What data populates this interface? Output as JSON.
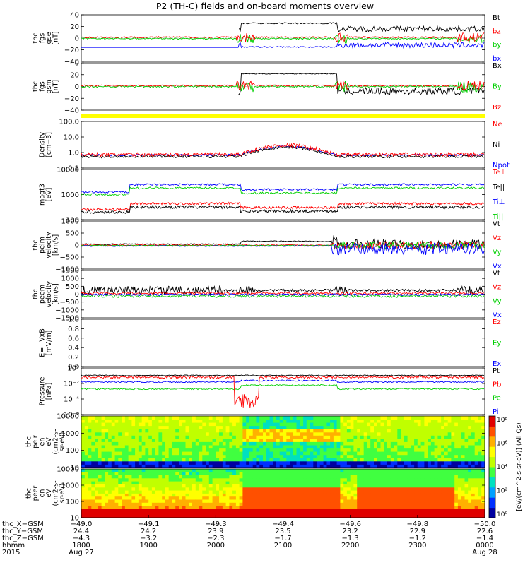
{
  "title": "P2 (TH-C) fields and on-board moments overview",
  "colors": {
    "black": "#000000",
    "red": "#ff0000",
    "green": "#00d000",
    "blue": "#0000ff",
    "yellow": "#ffff00"
  },
  "chart_data": [
    {
      "id": "fgs_gse",
      "type": "line",
      "ylabel": [
        "thc",
        "fgs",
        "gse",
        "[nT]"
      ],
      "yticks": [
        "40",
        "20",
        "0",
        "−20",
        "−40"
      ],
      "ylim": [
        -40,
        40
      ],
      "legend": [
        {
          "label": "Bt",
          "color": "black"
        },
        {
          "label": "bz",
          "color": "red"
        },
        {
          "label": "by",
          "color": "green"
        },
        {
          "label": "bx",
          "color": "blue"
        }
      ]
    },
    {
      "id": "fgs_gsm",
      "type": "line",
      "ylabel": [
        "thc",
        "fgs",
        "gsm",
        "[nT]"
      ],
      "yticks": [
        "40",
        "20",
        "0",
        "−20",
        "−40"
      ],
      "ylim": [
        -40,
        40
      ],
      "legend": [
        {
          "label": "Bx",
          "color": "black"
        },
        {
          "label": "By",
          "color": "green"
        },
        {
          "label": "Bz",
          "color": "red"
        }
      ]
    },
    {
      "id": "density",
      "type": "line",
      "ylabel": [
        "Density",
        "[cm−3]"
      ],
      "yticks": [
        "100.0",
        "10.0",
        "1.0",
        "0.1"
      ],
      "scale": "log",
      "legend": [
        {
          "label": "Ne",
          "color": "red"
        },
        {
          "label": "Ni",
          "color": "black"
        },
        {
          "label": "Npot",
          "color": "blue"
        }
      ]
    },
    {
      "id": "temperature",
      "type": "line",
      "ylabel": [
        "magt3",
        "[eV]"
      ],
      "yticks": [
        "10000",
        "1000",
        "100"
      ],
      "scale": "log",
      "legend": [
        {
          "label": "Te⊥",
          "color": "red"
        },
        {
          "label": "Te||",
          "color": "black"
        },
        {
          "label": "Ti⊥",
          "color": "blue"
        },
        {
          "label": "Ti||",
          "color": "green"
        }
      ]
    },
    {
      "id": "peim_velocity",
      "type": "line",
      "ylabel": [
        "thc",
        "peim",
        "velocity",
        "[km/s]"
      ],
      "yticks": [
        "1000",
        "500",
        "0",
        "−500",
        "−1000"
      ],
      "ylim": [
        -1000,
        1000
      ],
      "legend": [
        {
          "label": "Vt",
          "color": "black"
        },
        {
          "label": "Vz",
          "color": "red"
        },
        {
          "label": "Vy",
          "color": "green"
        },
        {
          "label": "Vx",
          "color": "blue"
        }
      ]
    },
    {
      "id": "peem_velocity",
      "type": "line",
      "ylabel": [
        "thc",
        "peem",
        "velocity",
        "[km/s]"
      ],
      "yticks": [
        "1500",
        "1000",
        "500",
        "0",
        "−500",
        "−1000",
        "−1500"
      ],
      "ylim": [
        -1500,
        1500
      ],
      "legend": [
        {
          "label": "Vt",
          "color": "black"
        },
        {
          "label": "Vz",
          "color": "red"
        },
        {
          "label": "Vy",
          "color": "green"
        },
        {
          "label": "Vx",
          "color": "blue"
        }
      ]
    },
    {
      "id": "efield",
      "type": "line",
      "ylabel": [
        "E=−VxB",
        "[mV/m]"
      ],
      "yticks": [
        "1.0",
        "0.8",
        "0.6",
        "0.4",
        "0.2",
        "0.0"
      ],
      "ylim": [
        0,
        1
      ],
      "legend": [
        {
          "label": "Ez",
          "color": "red"
        },
        {
          "label": "Ey",
          "color": "green"
        },
        {
          "label": "Ex",
          "color": "blue"
        }
      ]
    },
    {
      "id": "pressure",
      "type": "line",
      "ylabel": [
        "Pressure",
        "[nPa]"
      ],
      "yticks": [
        "10⁰",
        "10⁻²",
        "10⁻⁴",
        "10⁻⁶"
      ],
      "scale": "log",
      "legend": [
        {
          "label": "Pt",
          "color": "black"
        },
        {
          "label": "Pb",
          "color": "red"
        },
        {
          "label": "Pe",
          "color": "green"
        },
        {
          "label": "Pi",
          "color": "blue"
        }
      ]
    },
    {
      "id": "peir_spectrogram",
      "type": "heatmap",
      "ylabel": [
        "thc",
        "peir",
        "en",
        "eV",
        "(cm2-s-",
        "sr-eV)"
      ],
      "yticks": [
        "10000",
        "1000",
        "100",
        "10"
      ],
      "scale": "log"
    },
    {
      "id": "peer_spectrogram",
      "type": "heatmap",
      "ylabel": [
        "thc",
        "peer",
        "en",
        "eV",
        "(cm2-s-",
        "sr-eV)"
      ],
      "yticks": [
        "10000",
        "1000",
        "100",
        "10"
      ],
      "scale": "log",
      "colorbar": {
        "label": "[eV/(cm^2-s-sr-eV)] (All Qs)",
        "ticks": [
          "10⁸",
          "10⁶",
          "10⁴",
          "10²",
          "10⁰"
        ]
      }
    }
  ],
  "x_axis": {
    "rows": [
      {
        "label": "thc_X−GSM",
        "values": [
          "−49.0",
          "−49.1",
          "−49.3",
          "−49.4",
          "−49.6",
          "−49.8",
          "−50.0"
        ]
      },
      {
        "label": "thc_Y−GSM",
        "values": [
          "24.4",
          "24.2",
          "23.9",
          "23.5",
          "23.2",
          "22.9",
          "22.6"
        ]
      },
      {
        "label": "thc_Z−GSM",
        "values": [
          "−4.3",
          "−3.2",
          "−2.3",
          "−1.7",
          "−1.3",
          "−1.2",
          "−1.4"
        ]
      },
      {
        "label": "hhmm",
        "values": [
          "1800",
          "1900",
          "2000",
          "2100",
          "2200",
          "2300",
          "0000"
        ]
      },
      {
        "label": "2015",
        "values": [
          "Aug 27",
          "",
          "",
          "",
          "",
          "",
          "Aug 28"
        ]
      }
    ]
  }
}
